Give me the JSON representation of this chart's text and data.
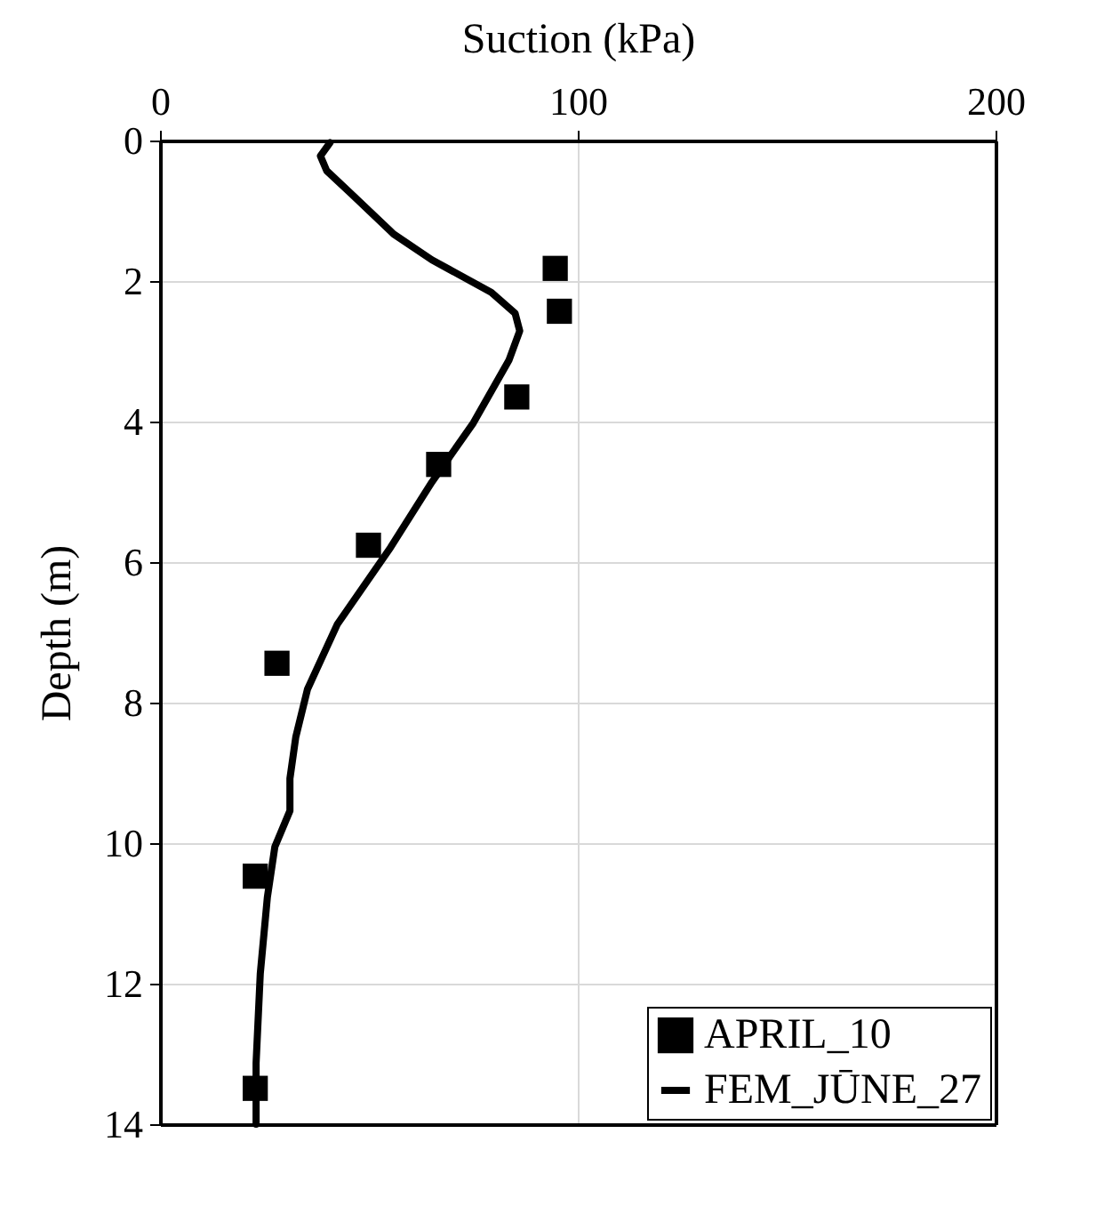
{
  "chart_data": {
    "type": "scatter",
    "xlabel": "Suction (kPa)",
    "ylabel": "Depth (m)",
    "xlim": [
      0,
      200
    ],
    "xticks": [
      0,
      100,
      200
    ],
    "ylim": [
      14,
      0
    ],
    "yticks": [
      0,
      2,
      4,
      6,
      8,
      10,
      12,
      14
    ],
    "grid": true,
    "legend": "bottom right",
    "series": [
      {
        "name": "APRIL_10",
        "marker": "square",
        "color": "#000000",
        "x": [
          94.6,
          95.6,
          85.4,
          66.7,
          49.9,
          28.0,
          22.8,
          22.8
        ],
        "values": [
          1.82,
          2.43,
          3.65,
          4.61,
          5.76,
          7.44,
          10.47,
          13.49
        ]
      },
      {
        "name": "FEM_JŪNE_27",
        "type": "line",
        "color": "#000000",
        "line_style": "solid",
        "x": [
          40.7,
          38.4,
          39.9,
          46.0,
          55.9,
          65.1,
          79.3,
          85.0,
          86.1,
          83.5,
          75.0,
          65.1,
          55.2,
          42.4,
          35.3,
          32.5,
          31.1,
          31.1,
          27.5,
          25.7,
          24.0,
          23.0,
          23.0
        ],
        "values": [
          0.03,
          0.22,
          0.43,
          0.77,
          1.33,
          1.7,
          2.16,
          2.46,
          2.71,
          3.13,
          4.02,
          4.86,
          5.79,
          6.89,
          7.81,
          8.49,
          9.08,
          9.54,
          10.05,
          10.77,
          11.86,
          13.13,
          14.0
        ]
      }
    ]
  }
}
